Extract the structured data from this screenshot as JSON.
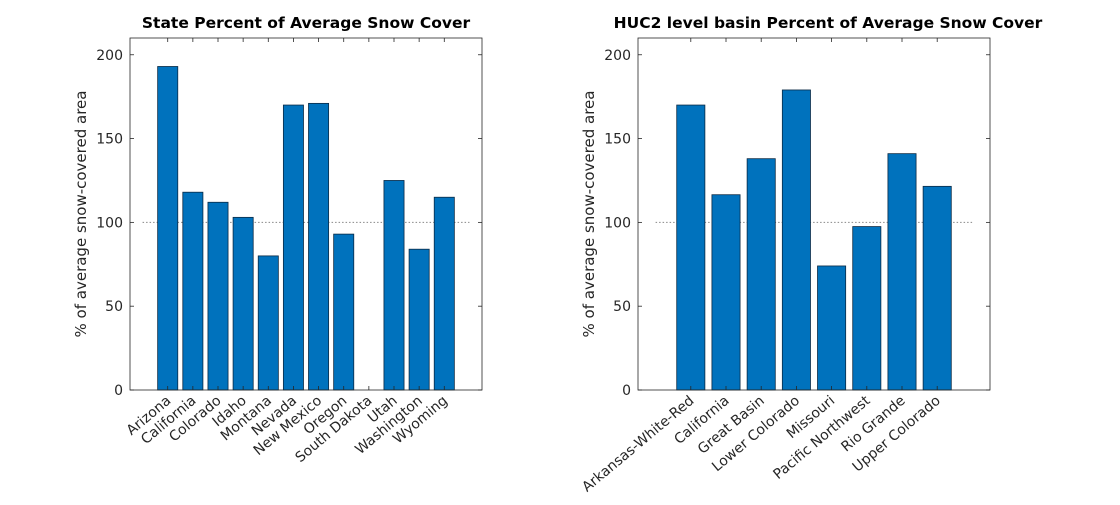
{
  "colors": {
    "bar_fill": "#0072BD",
    "bar_edge": "#0a2a45",
    "axis": "#262626",
    "reference_line": "#888888"
  },
  "chart_data": [
    {
      "type": "bar",
      "title": "State Percent of Average Snow Cover",
      "xlabel": "",
      "ylabel": "% of average snow-covered area",
      "categories": [
        "Arizona",
        "California",
        "Colorado",
        "Idaho",
        "Montana",
        "Nevada",
        "New Mexico",
        "Oregon",
        "South Dakota",
        "Utah",
        "Washington",
        "Wyoming"
      ],
      "values": [
        193,
        118,
        112,
        103,
        80,
        170,
        171,
        93,
        0,
        125,
        84,
        115
      ],
      "ylim": [
        0,
        210
      ],
      "yticks": [
        0,
        50,
        100,
        150,
        200
      ],
      "reference_line": 100,
      "grid": false
    },
    {
      "type": "bar",
      "title": "HUC2 level basin Percent of Average Snow Cover",
      "xlabel": "",
      "ylabel": "% of average snow-covered area",
      "categories": [
        "Arkansas-White-Red",
        "California",
        "Great Basin",
        "Lower Colorado",
        "Missouri",
        "Pacific Northwest",
        "Rio Grande",
        "Upper Colorado"
      ],
      "values": [
        170,
        116.5,
        138,
        179,
        74,
        97.5,
        141,
        121.5
      ],
      "ylim": [
        0,
        210
      ],
      "yticks": [
        0,
        50,
        100,
        150,
        200
      ],
      "reference_line": 100,
      "grid": false
    }
  ]
}
